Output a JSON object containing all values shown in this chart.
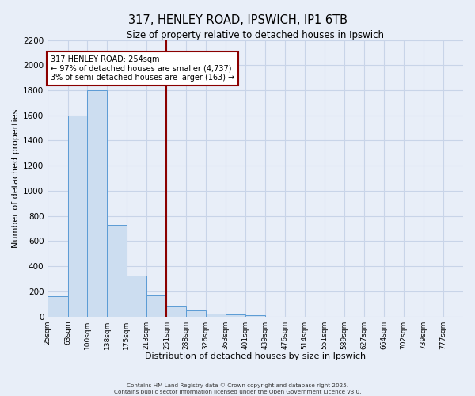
{
  "title": "317, HENLEY ROAD, IPSWICH, IP1 6TB",
  "subtitle": "Size of property relative to detached houses in Ipswich",
  "xlabel": "Distribution of detached houses by size in Ipswich",
  "ylabel": "Number of detached properties",
  "bar_labels": [
    "25sqm",
    "63sqm",
    "100sqm",
    "138sqm",
    "175sqm",
    "213sqm",
    "251sqm",
    "288sqm",
    "326sqm",
    "363sqm",
    "401sqm",
    "439sqm",
    "476sqm",
    "514sqm",
    "551sqm",
    "589sqm",
    "627sqm",
    "664sqm",
    "702sqm",
    "739sqm",
    "777sqm"
  ],
  "bar_values": [
    160,
    1600,
    1800,
    730,
    325,
    165,
    85,
    45,
    25,
    15,
    10,
    0,
    0,
    0,
    0,
    0,
    0,
    0,
    0,
    0,
    0
  ],
  "bin_edges": [
    25,
    63,
    100,
    138,
    175,
    213,
    251,
    288,
    326,
    363,
    401,
    439,
    476,
    514,
    551,
    589,
    627,
    664,
    702,
    739,
    777,
    815
  ],
  "bar_color": "#ccddf0",
  "bar_edge_color": "#5b9bd5",
  "vline_x": 251,
  "vline_color": "#8b0000",
  "annotation_title": "317 HENLEY ROAD: 254sqm",
  "annotation_line1": "← 97% of detached houses are smaller (4,737)",
  "annotation_line2": "3% of semi-detached houses are larger (163) →",
  "annotation_box_color": "#ffffff",
  "annotation_box_edge": "#8b0000",
  "ylim": [
    0,
    2200
  ],
  "yticks": [
    0,
    200,
    400,
    600,
    800,
    1000,
    1200,
    1400,
    1600,
    1800,
    2000,
    2200
  ],
  "grid_color": "#c8d4e8",
  "background_color": "#e8eef8",
  "footer1": "Contains HM Land Registry data © Crown copyright and database right 2025.",
  "footer2": "Contains public sector information licensed under the Open Government Licence v3.0."
}
